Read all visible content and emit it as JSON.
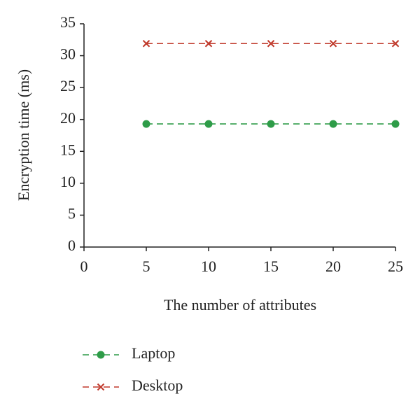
{
  "chart_data": {
    "type": "line",
    "x_label": "The number of attributes",
    "y_label": "Encryption time (ms)",
    "x": [
      5,
      10,
      15,
      20,
      25
    ],
    "xlim": [
      0,
      25
    ],
    "xticks": [
      0,
      5,
      10,
      15,
      20,
      25
    ],
    "ylim": [
      0,
      35
    ],
    "yticks": [
      0,
      5,
      10,
      15,
      20,
      25,
      30,
      35
    ],
    "legend": "bottom",
    "series": [
      {
        "name": "Laptop",
        "color": "#2e9c48",
        "marker": "circle",
        "values": [
          19.3,
          19.3,
          19.3,
          19.3,
          19.3
        ]
      },
      {
        "name": "Desktop",
        "color": "#c0392b",
        "marker": "x",
        "values": [
          31.9,
          31.9,
          31.9,
          31.9,
          31.9
        ]
      }
    ]
  }
}
